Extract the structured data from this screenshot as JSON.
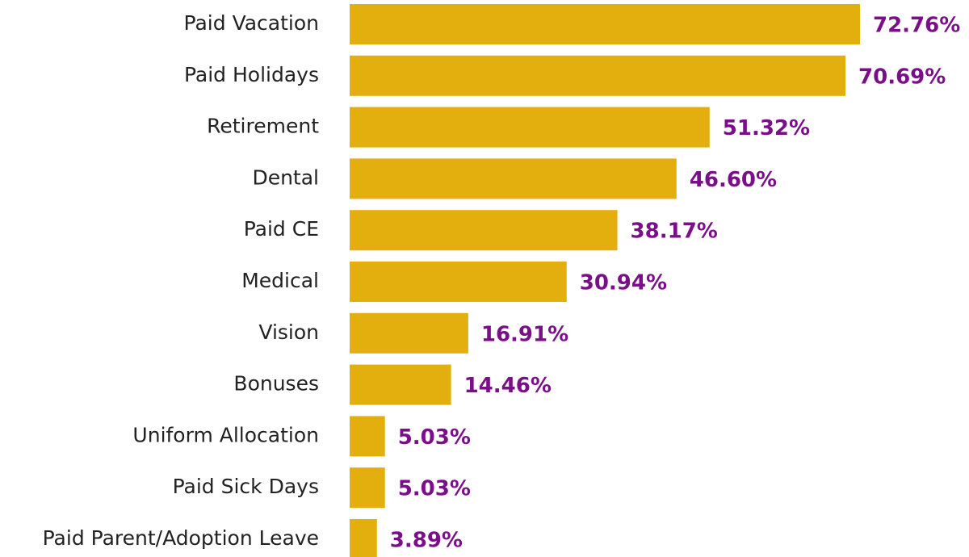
{
  "chart_data": {
    "type": "bar",
    "orientation": "horizontal",
    "categories": [
      "Paid Vacation",
      "Paid Holidays",
      "Retirement",
      "Dental",
      "Paid CE",
      "Medical",
      "Vision",
      "Bonuses",
      "Uniform Allocation",
      "Paid Sick Days",
      "Paid Parent/Adoption Leave"
    ],
    "values": [
      72.76,
      70.69,
      51.32,
      46.6,
      38.17,
      30.94,
      16.91,
      14.46,
      5.03,
      5.03,
      3.89
    ],
    "value_labels": [
      "72.76%",
      "70.69%",
      "51.32%",
      "46.60%",
      "38.17%",
      "30.94%",
      "16.91%",
      "14.46%",
      "5.03%",
      "5.03%",
      "3.89%"
    ],
    "color": "#e2af0e",
    "label_color": "#7b0f8a"
  }
}
